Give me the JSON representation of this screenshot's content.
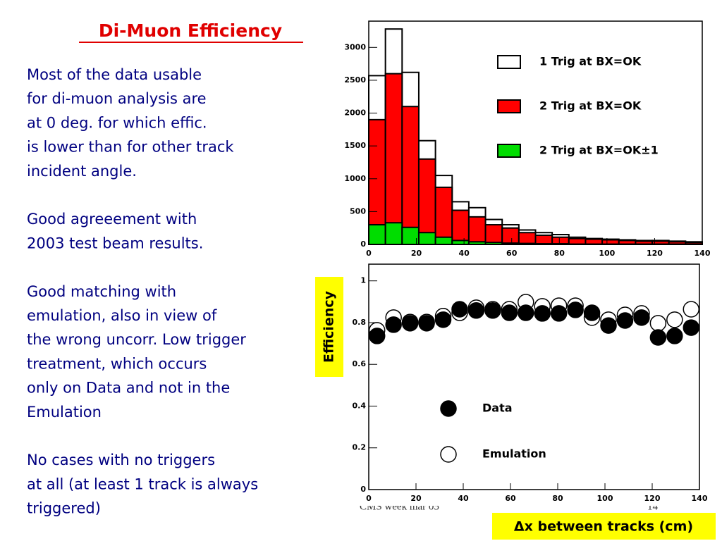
{
  "slide": {
    "title": "Di-Muon Efficiency",
    "paragraphs": [
      [
        "Most of the data usable",
        "for di-muon analysis are",
        "at 0 deg. for which effic.",
        "is lower than for other track",
        "incident angle."
      ],
      [
        "Good agreeement with",
        "2003 test beam results."
      ],
      [
        "Good matching with",
        "emulation, also in view of",
        "the wrong uncorr. Low trigger",
        "treatment, which occurs",
        "only on Data and not in the",
        "Emulation"
      ],
      [
        "No cases with no triggers",
        "at all (at least 1 track is always",
        "triggered)"
      ]
    ],
    "footer": "CMS week mar 05",
    "page_number": "14"
  },
  "chart_data": [
    {
      "type": "histogram",
      "bins": [
        0,
        7,
        14,
        21,
        28,
        35,
        42,
        49,
        56,
        63,
        70,
        77,
        84,
        91,
        98,
        105,
        112,
        119,
        126,
        133,
        140
      ],
      "series": [
        {
          "name": "1 Trig at BX=OK",
          "color": "#ffffff",
          "values": [
            2570,
            3280,
            2620,
            1580,
            1050,
            650,
            560,
            380,
            300,
            220,
            180,
            150,
            110,
            90,
            80,
            70,
            60,
            60,
            50,
            40
          ]
        },
        {
          "name": "2 Trig at BX=OK",
          "color": "#ff0000",
          "values": [
            1900,
            2600,
            2100,
            1300,
            870,
            520,
            420,
            300,
            250,
            180,
            140,
            110,
            90,
            80,
            70,
            60,
            50,
            50,
            40,
            30
          ]
        },
        {
          "name": "2 Trig at BX=OK±1",
          "color": "#00dd00",
          "values": [
            300,
            330,
            260,
            180,
            110,
            60,
            40,
            30,
            20,
            15,
            10,
            10,
            5,
            5,
            5,
            5,
            5,
            5,
            5,
            5
          ]
        }
      ],
      "xlim": [
        0,
        140
      ],
      "xticks": [
        0,
        20,
        40,
        60,
        80,
        100,
        120,
        140
      ],
      "ylim": [
        0,
        3400
      ],
      "yticks": [
        0,
        500,
        1000,
        1500,
        2000,
        2500,
        3000
      ]
    },
    {
      "type": "scatter",
      "x_label": "Δx between tracks (cm)",
      "y_label": "Efficiency",
      "x": [
        3.5,
        10.5,
        17.5,
        24.5,
        31.5,
        38.5,
        45.5,
        52.5,
        59.5,
        66.5,
        73.5,
        80.5,
        87.5,
        94.5,
        101.5,
        108.5,
        115.5,
        122.5,
        129.5,
        136.5
      ],
      "series": [
        {
          "name": "Data",
          "color": "#000000",
          "filled": true,
          "values": [
            0.736,
            0.79,
            0.797,
            0.797,
            0.814,
            0.864,
            0.858,
            0.858,
            0.847,
            0.847,
            0.844,
            0.844,
            0.861,
            0.847,
            0.786,
            0.81,
            0.824,
            0.729,
            0.736,
            0.776
          ]
        },
        {
          "name": "Emulation",
          "color": "#000000",
          "filled": false,
          "values": [
            0.763,
            0.824,
            0.803,
            0.803,
            0.831,
            0.847,
            0.871,
            0.864,
            0.864,
            0.898,
            0.878,
            0.881,
            0.881,
            0.824,
            0.814,
            0.837,
            0.844,
            0.797,
            0.814,
            0.864
          ]
        }
      ],
      "xlim": [
        0,
        140
      ],
      "xticks": [
        0,
        20,
        40,
        60,
        80,
        100,
        120,
        140
      ],
      "ylim": [
        0,
        1.08
      ],
      "yticks": [
        0,
        0.2,
        0.4,
        0.6,
        0.8,
        1
      ]
    }
  ]
}
